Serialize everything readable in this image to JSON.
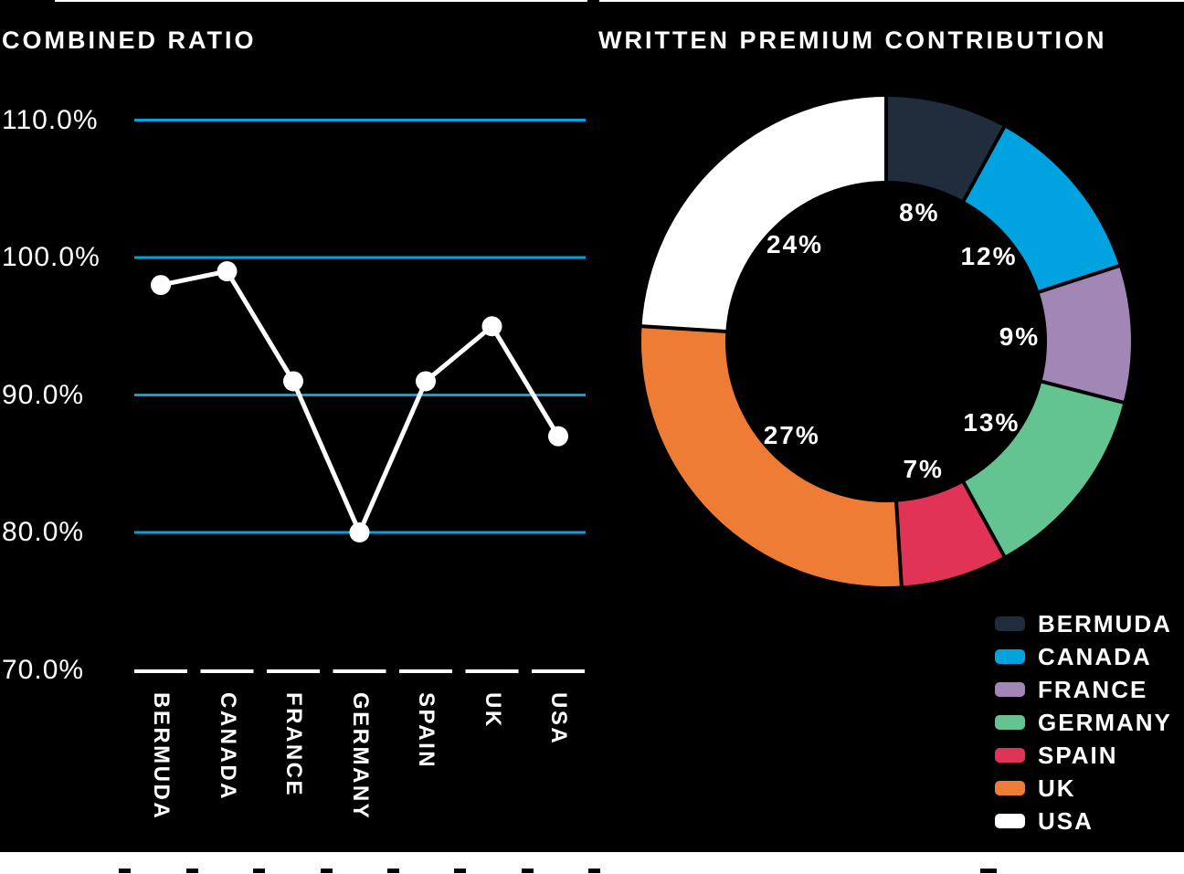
{
  "page": {
    "background": "#000000"
  },
  "left_chart": {
    "title": "COMBINED RATIO"
  },
  "right_chart": {
    "title": "WRITTEN PREMIUM CONTRIBUTION"
  },
  "chart_data": [
    {
      "type": "line",
      "title": "COMBINED RATIO",
      "categories": [
        "BERMUDA",
        "CANADA",
        "FRANCE",
        "GERMANY",
        "SPAIN",
        "UK",
        "USA"
      ],
      "values": [
        98,
        99,
        91,
        80,
        91,
        95,
        87
      ],
      "unit": "%",
      "ylim": [
        70,
        110
      ],
      "yticks": [
        {
          "value": 110,
          "label": "110.0%"
        },
        {
          "value": 100,
          "label": "100.0%"
        },
        {
          "value": 90,
          "label": "90.0%"
        },
        {
          "value": 80,
          "label": "80.0%"
        },
        {
          "value": 70,
          "label": "70.0%"
        }
      ],
      "grid": "horizontal-lines",
      "baseline": "dashed-per-category",
      "colors": {
        "line": "#FFFFFF",
        "marker": "#FFFFFF",
        "gridline": "#00A3E0",
        "baseline_dash": "#FFFFFF"
      }
    },
    {
      "type": "pie",
      "subtype": "donut",
      "title": "WRITTEN PREMIUM CONTRIBUTION",
      "categories": [
        "BERMUDA",
        "CANADA",
        "FRANCE",
        "GERMANY",
        "SPAIN",
        "UK",
        "USA"
      ],
      "values": [
        8,
        12,
        9,
        13,
        7,
        27,
        24
      ],
      "slice_labels": [
        "8%",
        "12%",
        "9%",
        "13%",
        "7%",
        "27%",
        "24%"
      ],
      "colors": [
        "#1F2D3C",
        "#00A3E0",
        "#A286B6",
        "#63C492",
        "#E13355",
        "#EE7C34",
        "#FFFFFF"
      ],
      "start_angle_deg": 0,
      "direction": "clockwise",
      "legend_position": "bottom-right",
      "legend": [
        {
          "label": "BERMUDA",
          "color": "#1F2D3C"
        },
        {
          "label": "CANADA",
          "color": "#00A3E0"
        },
        {
          "label": "FRANCE",
          "color": "#A286B6"
        },
        {
          "label": "GERMANY",
          "color": "#63C492"
        },
        {
          "label": "SPAIN",
          "color": "#E13355"
        },
        {
          "label": "UK",
          "color": "#EE7C34"
        },
        {
          "label": "USA",
          "color": "#FFFFFF"
        }
      ]
    }
  ]
}
